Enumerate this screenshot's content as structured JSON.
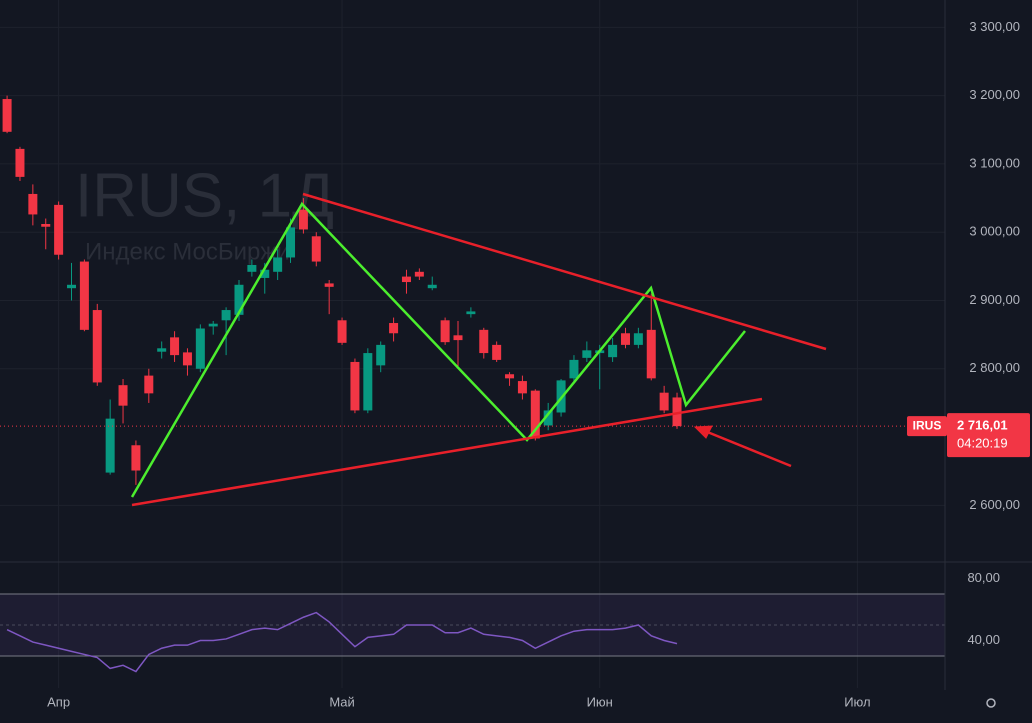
{
  "chart_data": [
    {
      "type": "candlestick",
      "watermark": "IRUS, 1Д",
      "watermark_subtitle": "Индекс МосБиржи",
      "up_color": "#089981",
      "down_color": "#f23645",
      "x": [
        0,
        1,
        2,
        3,
        4,
        5,
        6,
        7,
        8,
        9,
        10,
        11,
        12,
        13,
        14,
        15,
        16,
        17,
        18,
        19,
        20,
        21,
        22,
        23,
        24,
        25,
        26,
        27,
        28,
        29,
        30,
        31,
        32,
        33,
        34,
        35,
        36,
        37,
        38,
        39,
        40,
        41,
        42,
        43,
        44,
        45,
        46,
        47,
        48,
        49,
        50,
        51,
        52
      ],
      "open": [
        3195,
        3122,
        3056,
        3012,
        3040,
        2918,
        2957,
        2886,
        2648,
        2776,
        2688,
        2790,
        2825,
        2846,
        2824,
        2800,
        2862,
        2871,
        2879,
        2942,
        2933,
        2942,
        2963,
        3033,
        2994,
        2925,
        2871,
        2810,
        2739,
        2805,
        2867,
        2935,
        2942,
        2918,
        2871,
        2849,
        2880,
        2857,
        2835,
        2792,
        2782,
        2768,
        2717,
        2736,
        2786,
        2816,
        2823,
        2817,
        2852,
        2835,
        2857,
        2765,
        2758
      ],
      "high": [
        3200,
        3125,
        3070,
        3020,
        3045,
        2955,
        2960,
        2895,
        2755,
        2785,
        2695,
        2800,
        2840,
        2855,
        2830,
        2865,
        2870,
        2890,
        2930,
        2960,
        2955,
        2975,
        3020,
        3050,
        3000,
        2930,
        2875,
        2815,
        2830,
        2840,
        2875,
        2945,
        2947,
        2935,
        2875,
        2870,
        2890,
        2860,
        2840,
        2795,
        2790,
        2770,
        2750,
        2785,
        2820,
        2840,
        2835,
        2845,
        2860,
        2860,
        2910,
        2775,
        2765
      ],
      "low": [
        3145,
        3075,
        3010,
        2975,
        2960,
        2900,
        2855,
        2775,
        2645,
        2720,
        2630,
        2750,
        2815,
        2810,
        2790,
        2795,
        2850,
        2820,
        2870,
        2935,
        2910,
        2930,
        2955,
        2998,
        2950,
        2880,
        2835,
        2735,
        2735,
        2795,
        2840,
        2910,
        2930,
        2915,
        2835,
        2800,
        2875,
        2815,
        2810,
        2775,
        2755,
        2695,
        2710,
        2730,
        2780,
        2810,
        2770,
        2810,
        2830,
        2830,
        2783,
        2735,
        2712
      ],
      "close": [
        3147,
        3081,
        3026,
        3008,
        2967,
        2923,
        2857,
        2780,
        2727,
        2746,
        2651,
        2764,
        2830,
        2820,
        2805,
        2859,
        2866,
        2886,
        2923,
        2952,
        2945,
        2963,
        3007,
        3004,
        2957,
        2920,
        2838,
        2739,
        2823,
        2835,
        2852,
        2927,
        2935,
        2923,
        2839,
        2842,
        2884,
        2823,
        2813,
        2786,
        2764,
        2698,
        2739,
        2783,
        2813,
        2827,
        2827,
        2835,
        2835,
        2852,
        2786,
        2739,
        2716.01
      ],
      "xlim": [
        -0.55,
        72.8
      ],
      "xticks": [
        {
          "value": 4,
          "label": "Апр"
        },
        {
          "value": 26,
          "label": "Май"
        },
        {
          "value": 46,
          "label": "Июн"
        },
        {
          "value": 66,
          "label": "Июл"
        }
      ],
      "ylim": [
        2520,
        3340
      ],
      "yticks": [
        {
          "value": 2600,
          "label": "2 600,00"
        },
        {
          "value": 2800,
          "label": "2 800,00"
        },
        {
          "value": 2900,
          "label": "2 900,00"
        },
        {
          "value": 3000,
          "label": "3 000,00"
        },
        {
          "value": 3100,
          "label": "3 100,00"
        },
        {
          "value": 3200,
          "label": "3 200,00"
        },
        {
          "value": 3300,
          "label": "3 300,00"
        }
      ],
      "price_marker": {
        "name": "IRUS",
        "value": 2716.01,
        "label": "2 716,01",
        "timer": "04:20:19"
      }
    },
    {
      "type": "line",
      "color": "#7e57c2",
      "values": [
        47,
        43,
        39,
        37,
        35,
        33,
        31,
        29,
        22,
        24,
        20,
        31,
        35,
        37,
        37,
        40,
        40,
        41,
        44,
        47,
        48,
        47,
        51,
        55,
        58,
        52,
        44,
        36,
        42,
        43,
        44,
        50,
        50,
        50,
        45,
        45,
        48,
        44,
        43,
        42,
        40,
        35,
        39,
        43,
        46,
        47,
        47,
        47,
        48,
        50,
        43,
        40,
        38
      ],
      "ylim": [
        10,
        90
      ],
      "yticks": [
        {
          "value": 40,
          "label": "40,00"
        },
        {
          "value": 80,
          "label": "80,00"
        }
      ],
      "band": [
        30,
        70
      ],
      "midline": 50
    }
  ]
}
